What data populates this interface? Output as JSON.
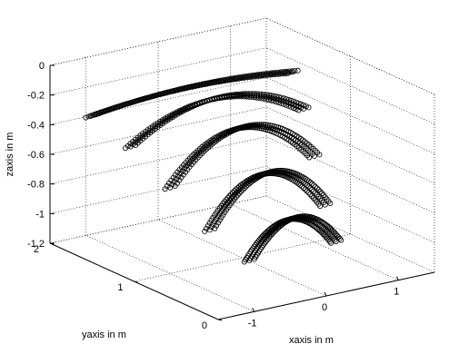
{
  "chart_data": {
    "type": "scatter",
    "projection": "3d",
    "marker": "circle",
    "marker_color": "#000000",
    "grid": true,
    "xlabel": "xaxis in m",
    "ylabel": "yaxis in m",
    "zlabel": "zaxis in m",
    "xlim": [
      -1.5,
      1.5
    ],
    "ylim": [
      0,
      2
    ],
    "zlim": [
      -1.2,
      0
    ],
    "x_ticks": [
      "-1",
      "0",
      "1"
    ],
    "y_ticks": [
      "0",
      "1",
      "2"
    ],
    "z_ticks": [
      "-1.2",
      "-1",
      "-0.8",
      "-0.6",
      "-0.4",
      "-0.2",
      "0"
    ],
    "series": [
      {
        "y": 1.6,
        "z": -0.25,
        "curve": 0.05,
        "x_range": [
          -1.4,
          1.4
        ]
      },
      {
        "y": 1.3,
        "z": -0.4,
        "curve": 0.2,
        "x_range": [
          -1.2,
          1.2
        ]
      },
      {
        "y": 1.0,
        "z": -0.62,
        "curve": 0.3,
        "x_range": [
          -1.0,
          1.0
        ]
      },
      {
        "y": 0.7,
        "z": -0.85,
        "curve": 0.3,
        "x_range": [
          -0.8,
          0.8
        ]
      },
      {
        "y": 0.4,
        "z": -1.0,
        "curve": 0.22,
        "x_range": [
          -0.6,
          0.6
        ]
      }
    ]
  }
}
